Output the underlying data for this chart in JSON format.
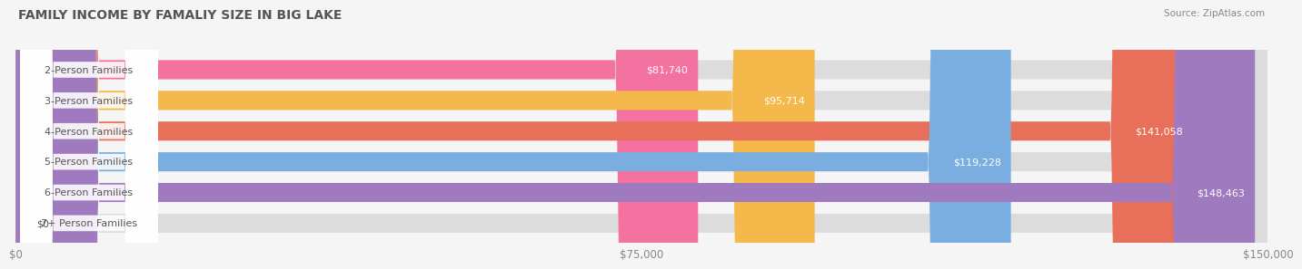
{
  "title": "FAMILY INCOME BY FAMALIY SIZE IN BIG LAKE",
  "source": "Source: ZipAtlas.com",
  "categories": [
    "2-Person Families",
    "3-Person Families",
    "4-Person Families",
    "5-Person Families",
    "6-Person Families",
    "7+ Person Families"
  ],
  "values": [
    81740,
    95714,
    141058,
    119228,
    148463,
    0
  ],
  "bar_colors": [
    "#f472a0",
    "#f5b84a",
    "#e8705a",
    "#7aaee0",
    "#a07abf",
    "#6dcdd8"
  ],
  "label_colors": [
    "white",
    "white",
    "white",
    "white",
    "white",
    "#555555"
  ],
  "value_labels": [
    "$81,740",
    "$95,714",
    "$141,058",
    "$119,228",
    "$148,463",
    "$0"
  ],
  "xlim": [
    0,
    150000
  ],
  "xticks": [
    0,
    75000,
    150000
  ],
  "xticklabels": [
    "$0",
    "$75,000",
    "$150,000"
  ],
  "background_color": "#f5f5f5",
  "bar_bg_color": "#dcdcdc",
  "title_fontsize": 10,
  "label_fontsize": 8.0,
  "value_fontsize": 8.0,
  "bar_height": 0.62
}
